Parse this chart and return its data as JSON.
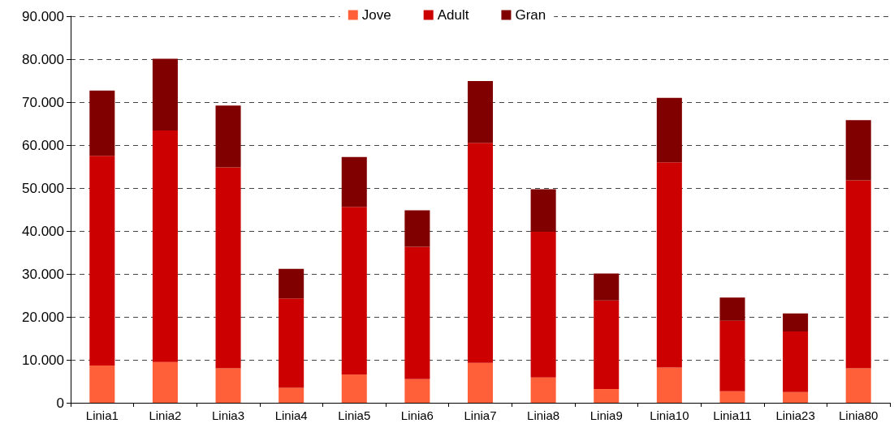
{
  "chart_data": {
    "type": "bar",
    "stacked": true,
    "categories": [
      "Linia1",
      "Linia2",
      "Linia3",
      "Linia4",
      "Linia5",
      "Linia6",
      "Linia7",
      "Linia8",
      "Linia9",
      "Linia10",
      "Linia11",
      "Linia23",
      "Linia80"
    ],
    "series": [
      {
        "name": "Jove",
        "color": "#ff6039",
        "values": [
          8700,
          9500,
          8000,
          3500,
          6600,
          5500,
          9300,
          5900,
          3200,
          8200,
          2700,
          2500,
          8000
        ]
      },
      {
        "name": "Adult",
        "color": "#cc0000",
        "values": [
          48800,
          53900,
          46800,
          20800,
          39000,
          30800,
          51200,
          33900,
          20600,
          47800,
          16400,
          14100,
          43800
        ]
      },
      {
        "name": "Gran",
        "color": "#800000",
        "values": [
          15200,
          16700,
          14400,
          6900,
          11600,
          8500,
          14400,
          9900,
          6300,
          15000,
          5400,
          4200,
          14000
        ]
      }
    ],
    "ylim": [
      0,
      90000
    ],
    "yticks": [
      0,
      {
        "value": 10000,
        "label": "10.000"
      },
      {
        "value": 20000,
        "label": "20.000"
      },
      {
        "value": 30000,
        "label": "30.000"
      },
      {
        "value": 40000,
        "label": "40.000"
      },
      {
        "value": 50000,
        "label": "50.000"
      },
      {
        "value": 60000,
        "label": "60.000"
      },
      {
        "value": 70000,
        "label": "70.000"
      },
      {
        "value": 80000,
        "label": "80.000"
      },
      {
        "value": 90000,
        "label": "90.000"
      }
    ],
    "grid": "y",
    "legend": "top"
  }
}
